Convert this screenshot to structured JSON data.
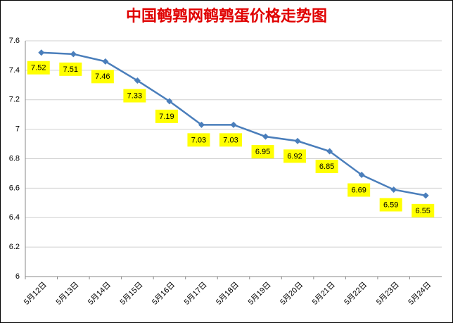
{
  "chart_data": {
    "type": "line",
    "title": "中国鹌鹑网鹌鹑蛋价格走势图",
    "categories": [
      "5月12日",
      "5月13日",
      "5月14日",
      "5月15日",
      "5月16日",
      "5月17日",
      "5月18日",
      "5月19日",
      "5月20日",
      "5月21日",
      "5月22日",
      "5月23日",
      "5月24日"
    ],
    "values": [
      7.52,
      7.51,
      7.46,
      7.33,
      7.19,
      7.03,
      7.03,
      6.95,
      6.92,
      6.85,
      6.69,
      6.59,
      6.55
    ],
    "color": "#4a7ebb",
    "label_color": "#ffff00",
    "title_color": "#e00000",
    "ylim": [
      6,
      7.6
    ],
    "yticks": [
      6,
      6.2,
      6.4,
      6.6,
      6.8,
      7,
      7.2,
      7.4,
      7.6
    ],
    "grid": true
  }
}
